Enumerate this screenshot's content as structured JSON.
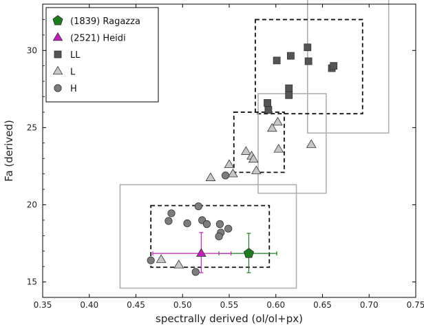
{
  "chart_data": {
    "type": "scatter",
    "title": "",
    "xlabel": "spectrally derived (ol/ol+px)",
    "ylabel": "Fa (derived)",
    "xlim": [
      0.35,
      0.75
    ],
    "ylim": [
      14,
      33
    ],
    "x_ticks": [
      "0.35",
      "0.40",
      "0.45",
      "0.50",
      "0.55",
      "0.60",
      "0.65",
      "0.70",
      "0.75"
    ],
    "y_ticks": [
      "15",
      "20",
      "25",
      "30"
    ],
    "grid": false,
    "legend_position": "top-left",
    "series": [
      {
        "name": "(1839) Ragazza",
        "marker": "pentagon",
        "color": "#1e7b1e",
        "points": [
          {
            "x": 0.571,
            "y": 16.85,
            "xerr": [
              0.539,
              0.601
            ],
            "yerr": [
              15.6,
              18.15
            ]
          }
        ]
      },
      {
        "name": "(2521) Heidi",
        "marker": "triangle",
        "color": "#c21fb8",
        "points": [
          {
            "x": 0.52,
            "y": 16.85,
            "xerr": [
              0.468,
              0.552
            ],
            "yerr": [
              15.6,
              18.2
            ]
          }
        ]
      },
      {
        "name": "LL",
        "marker": "square",
        "color": "#555555",
        "points": [
          {
            "x": 0.601,
            "y": 29.35
          },
          {
            "x": 0.616,
            "y": 29.65
          },
          {
            "x": 0.634,
            "y": 30.2
          },
          {
            "x": 0.635,
            "y": 29.3
          },
          {
            "x": 0.66,
            "y": 28.85
          },
          {
            "x": 0.662,
            "y": 29.0
          },
          {
            "x": 0.591,
            "y": 26.6
          },
          {
            "x": 0.592,
            "y": 26.15
          },
          {
            "x": 0.614,
            "y": 27.55
          },
          {
            "x": 0.614,
            "y": 27.1
          }
        ]
      },
      {
        "name": "L",
        "marker": "triangle",
        "color": "#c7c7c7",
        "points": [
          {
            "x": 0.602,
            "y": 25.35
          },
          {
            "x": 0.596,
            "y": 24.95
          },
          {
            "x": 0.638,
            "y": 23.9
          },
          {
            "x": 0.603,
            "y": 23.6
          },
          {
            "x": 0.568,
            "y": 23.45
          },
          {
            "x": 0.574,
            "y": 23.15
          },
          {
            "x": 0.576,
            "y": 22.95
          },
          {
            "x": 0.55,
            "y": 22.6
          },
          {
            "x": 0.579,
            "y": 22.2
          },
          {
            "x": 0.554,
            "y": 22.0
          },
          {
            "x": 0.53,
            "y": 21.75
          },
          {
            "x": 0.477,
            "y": 16.45
          },
          {
            "x": 0.496,
            "y": 16.1
          }
        ]
      },
      {
        "name": "H",
        "marker": "circle",
        "color": "#7d7d7d",
        "points": [
          {
            "x": 0.488,
            "y": 19.45
          },
          {
            "x": 0.485,
            "y": 18.95
          },
          {
            "x": 0.505,
            "y": 18.8
          },
          {
            "x": 0.517,
            "y": 19.9
          },
          {
            "x": 0.521,
            "y": 19.0
          },
          {
            "x": 0.526,
            "y": 18.75
          },
          {
            "x": 0.54,
            "y": 18.75
          },
          {
            "x": 0.541,
            "y": 18.2
          },
          {
            "x": 0.539,
            "y": 17.95
          },
          {
            "x": 0.549,
            "y": 18.45
          },
          {
            "x": 0.466,
            "y": 16.4
          },
          {
            "x": 0.514,
            "y": 15.65
          },
          {
            "x": 0.546,
            "y": 21.9
          }
        ]
      }
    ],
    "boxes": [
      {
        "style": "solid",
        "x": [
          0.634,
          0.721
        ],
        "y": [
          24.65,
          33.3
        ]
      },
      {
        "style": "dashed",
        "x": [
          0.578,
          0.693
        ],
        "y": [
          25.9,
          32.0
        ]
      },
      {
        "style": "solid",
        "x": [
          0.581,
          0.654
        ],
        "y": [
          20.75,
          27.2
        ]
      },
      {
        "style": "dashed",
        "x": [
          0.555,
          0.609
        ],
        "y": [
          22.1,
          26.0
        ]
      },
      {
        "style": "solid",
        "x": [
          0.433,
          0.622
        ],
        "y": [
          14.6,
          21.3
        ]
      },
      {
        "style": "dashed",
        "x": [
          0.466,
          0.593
        ],
        "y": [
          15.95,
          19.95
        ]
      }
    ]
  }
}
